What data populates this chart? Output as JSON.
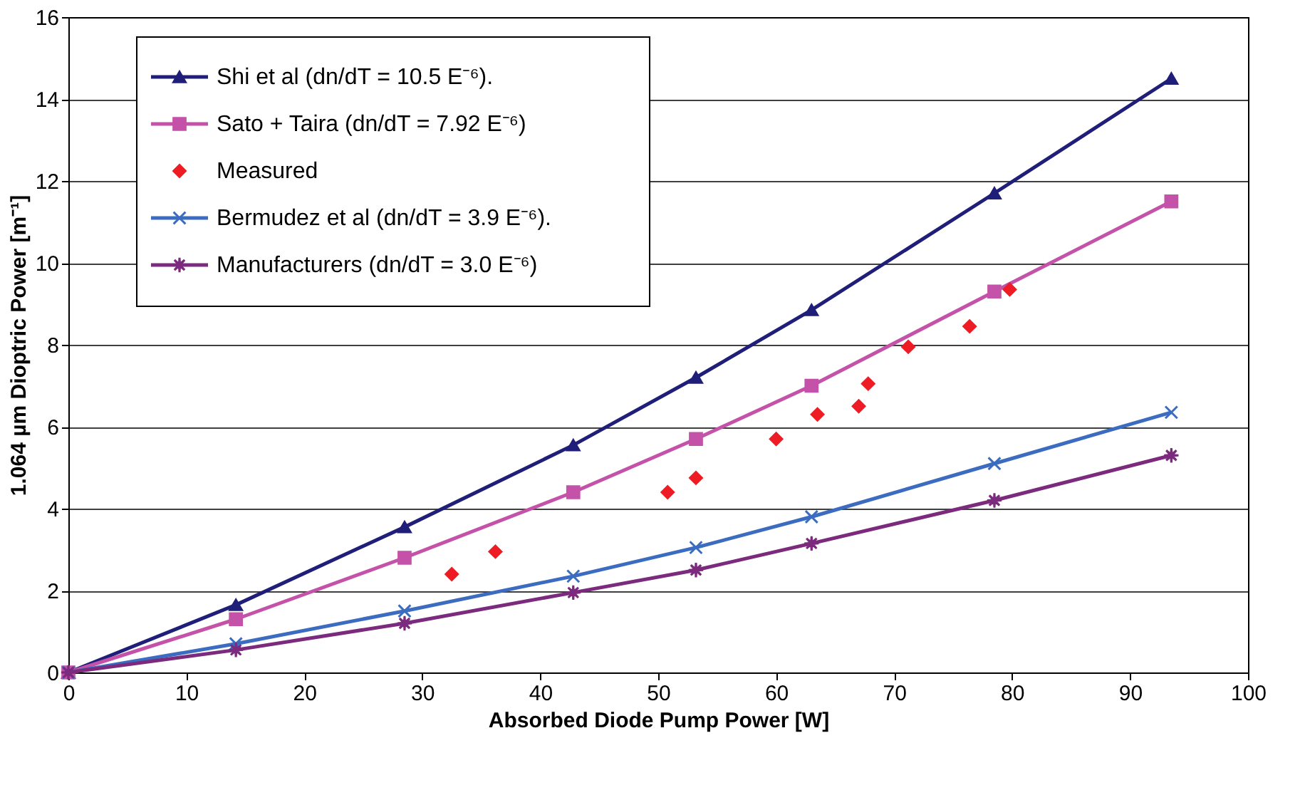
{
  "chart_data": {
    "type": "line",
    "xlabel": "Absorbed Diode Pump Power [W]",
    "ylabel": "1.064 µm Dioptric Power [m⁻¹]",
    "xlim": [
      0,
      100
    ],
    "xticks": [
      0,
      10,
      20,
      30,
      40,
      50,
      60,
      70,
      80,
      90,
      100
    ],
    "ylim": [
      0,
      16
    ],
    "yticks": [
      0,
      2,
      4,
      6,
      8,
      10,
      12,
      14,
      16
    ],
    "grid": "y",
    "legend": "top left",
    "line_style": "solid",
    "series": [
      {
        "name": "Shi et al (dn/dT = 10.5 E⁻⁶).",
        "color": "#1f1f7a",
        "marker": "triangle",
        "x": [
          0,
          14.2,
          28.5,
          42.8,
          53.2,
          63,
          78.5,
          93.5
        ],
        "values": [
          0,
          1.65,
          3.55,
          5.55,
          7.2,
          8.85,
          11.7,
          14.5
        ]
      },
      {
        "name": "Sato + Taira (dn/dT = 7.92 E⁻⁶)",
        "color": "#c452a8",
        "marker": "square",
        "x": [
          0,
          14.2,
          28.5,
          42.8,
          53.2,
          63,
          78.5,
          93.5
        ],
        "values": [
          0,
          1.3,
          2.8,
          4.4,
          5.7,
          7.0,
          9.3,
          11.5
        ]
      },
      {
        "name": "Measured",
        "type": "scatter",
        "color": "#ee1c24",
        "marker": "diamond",
        "x": [
          32.5,
          36.2,
          50.8,
          53.2,
          60,
          63.5,
          67,
          67.8,
          71.2,
          76.4,
          79.8
        ],
        "values": [
          2.4,
          2.95,
          4.4,
          4.75,
          5.7,
          6.3,
          6.5,
          7.05,
          7.95,
          8.45,
          9.35
        ]
      },
      {
        "name": "Bermudez et al (dn/dT = 3.9 E⁻⁶).",
        "color": "#3c6cc0",
        "marker": "cross",
        "x": [
          0,
          14.2,
          28.5,
          42.8,
          53.2,
          63,
          78.5,
          93.5
        ],
        "values": [
          0,
          0.7,
          1.5,
          2.35,
          3.05,
          3.8,
          5.1,
          6.35
        ]
      },
      {
        "name": "Manufacturers (dn/dT = 3.0 E⁻⁶)",
        "color": "#7b2a7e",
        "marker": "star",
        "x": [
          0,
          14.2,
          28.5,
          42.8,
          53.2,
          63,
          78.5,
          93.5
        ],
        "values": [
          0,
          0.55,
          1.2,
          1.95,
          2.5,
          3.15,
          4.2,
          5.3
        ]
      }
    ]
  }
}
